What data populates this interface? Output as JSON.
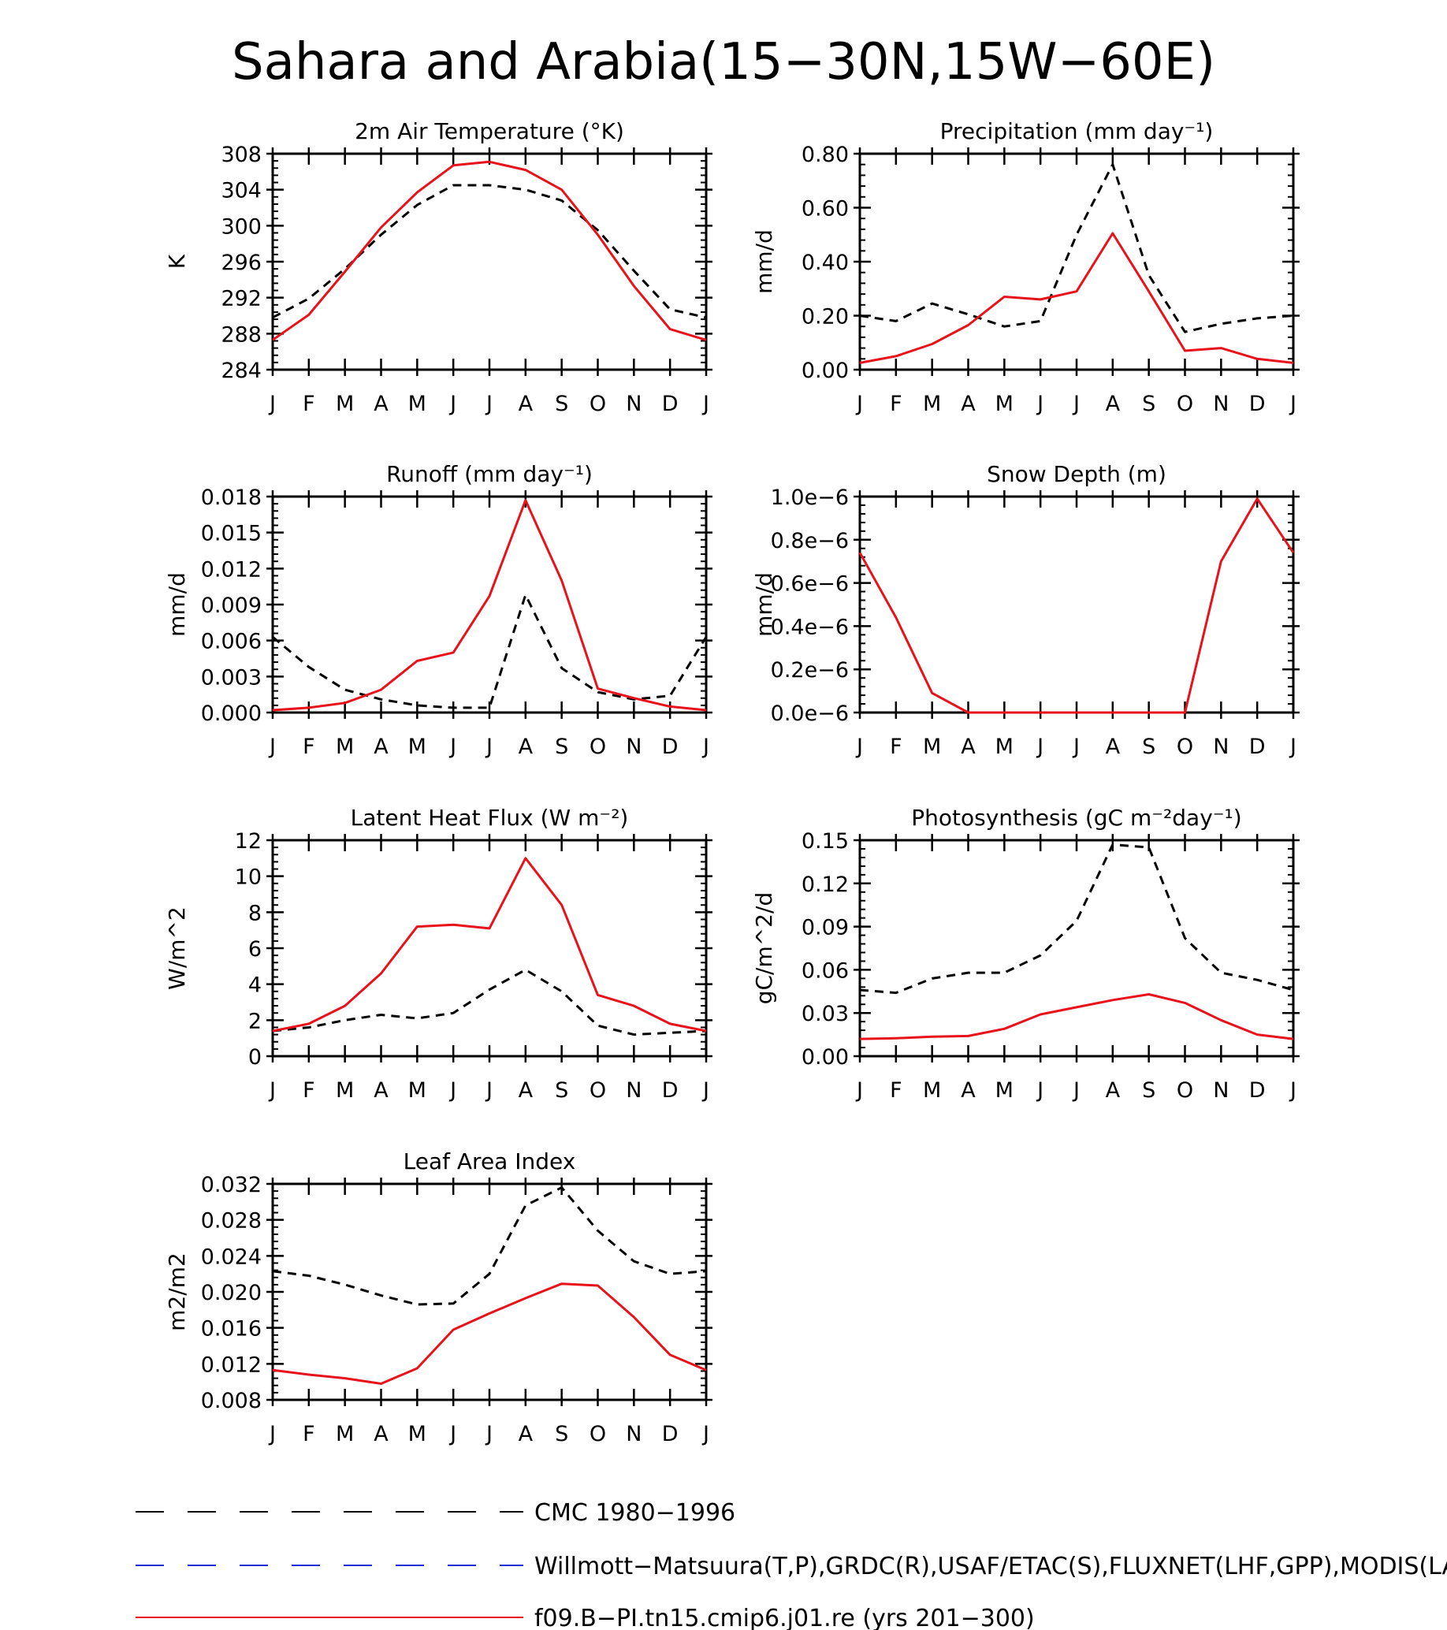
{
  "figure": {
    "title": "Sahara and Arabia(15−30N,15W−60E)"
  },
  "colors": {
    "cmc": "#000000",
    "obs": "#1f2bd6",
    "model": "#e8121b"
  },
  "chart_data": [
    {
      "type": "line",
      "title": "2m Air Temperature (°K)",
      "ylabel": "K",
      "categories": [
        "J",
        "F",
        "M",
        "A",
        "M",
        "J",
        "J",
        "A",
        "S",
        "O",
        "N",
        "D",
        "J"
      ],
      "ylim": [
        284,
        308
      ],
      "yticks": [
        284,
        288,
        292,
        296,
        300,
        304,
        308
      ],
      "ytick_labels": [
        "284",
        "288",
        "292",
        "296",
        "300",
        "304",
        "308"
      ],
      "series": [
        {
          "name": "CMC 1980−1996",
          "style": "dashed",
          "values": [
            289.8,
            291.9,
            295.2,
            299.0,
            302.3,
            304.5,
            304.5,
            304.0,
            302.8,
            299.5,
            295.0,
            290.7,
            289.8
          ]
        },
        {
          "name": "f09.B−PI.tn15.cmip6.j01.re (yrs 201−300)",
          "style": "solid",
          "values": [
            287.3,
            290.1,
            294.9,
            299.8,
            303.7,
            306.7,
            307.1,
            306.2,
            304.0,
            299.0,
            293.3,
            288.5,
            287.3
          ]
        }
      ]
    },
    {
      "type": "line",
      "title": "Precipitation (mm day⁻¹)",
      "ylabel": "mm/d",
      "categories": [
        "J",
        "F",
        "M",
        "A",
        "M",
        "J",
        "J",
        "A",
        "S",
        "O",
        "N",
        "D",
        "J"
      ],
      "ylim": [
        0,
        0.8
      ],
      "yticks": [
        0,
        0.2,
        0.4,
        0.6,
        0.8
      ],
      "ytick_labels": [
        "0.00",
        "0.20",
        "0.40",
        "0.60",
        "0.80"
      ],
      "series": [
        {
          "name": "CMC 1980−1996",
          "style": "dashed",
          "values": [
            0.2,
            0.18,
            0.245,
            0.205,
            0.16,
            0.18,
            0.5,
            0.76,
            0.35,
            0.14,
            0.17,
            0.19,
            0.2
          ]
        },
        {
          "name": "f09.B−PI.tn15.cmip6.j01.re (yrs 201−300)",
          "style": "solid",
          "values": [
            0.025,
            0.05,
            0.095,
            0.165,
            0.27,
            0.26,
            0.29,
            0.505,
            0.29,
            0.07,
            0.08,
            0.04,
            0.025
          ]
        }
      ]
    },
    {
      "type": "line",
      "title": "Runoff (mm day⁻¹)",
      "ylabel": "mm/d",
      "categories": [
        "J",
        "F",
        "M",
        "A",
        "M",
        "J",
        "J",
        "A",
        "S",
        "O",
        "N",
        "D",
        "J"
      ],
      "ylim": [
        0,
        0.018
      ],
      "yticks": [
        0,
        0.003,
        0.006,
        0.009,
        0.012,
        0.015,
        0.018
      ],
      "ytick_labels": [
        "0.000",
        "0.003",
        "0.006",
        "0.009",
        "0.012",
        "0.015",
        "0.018"
      ],
      "series": [
        {
          "name": "CMC 1980−1996",
          "style": "dashed",
          "values": [
            0.0063,
            0.0038,
            0.0019,
            0.0011,
            0.0006,
            0.0004,
            0.0004,
            0.0098,
            0.0037,
            0.0017,
            0.0011,
            0.0014,
            0.0063
          ]
        },
        {
          "name": "f09.B−PI.tn15.cmip6.j01.re (yrs 201−300)",
          "style": "solid",
          "values": [
            0.0002,
            0.0004,
            0.0008,
            0.0019,
            0.0043,
            0.005,
            0.0097,
            0.0177,
            0.011,
            0.002,
            0.0012,
            0.0005,
            0.0002
          ]
        }
      ]
    },
    {
      "type": "line",
      "title": "Snow Depth (m)",
      "ylabel": "mm/d",
      "categories": [
        "J",
        "F",
        "M",
        "A",
        "M",
        "J",
        "J",
        "A",
        "S",
        "O",
        "N",
        "D",
        "J"
      ],
      "ylim": [
        0,
        1e-06
      ],
      "yticks": [
        0,
        2e-07,
        4e-07,
        6e-07,
        8e-07,
        1e-06
      ],
      "ytick_labels": [
        "0.0e−6",
        "0.2e−6",
        "0.4e−6",
        "0.6e−6",
        "0.8e−6",
        "1.0e−6"
      ],
      "series": [
        {
          "name": "CMC 1980−1996",
          "style": "dashed",
          "values": [
            0,
            0,
            0,
            0,
            0,
            0,
            0,
            0,
            0,
            0,
            0,
            0,
            0
          ]
        },
        {
          "name": "f09.B−PI.tn15.cmip6.j01.re (yrs 201−300)",
          "style": "solid",
          "values": [
            7.4e-07,
            4.4e-07,
            9e-08,
            0,
            0,
            0,
            0,
            0,
            0,
            0,
            7e-07,
            9.9e-07,
            7.4e-07
          ]
        }
      ]
    },
    {
      "type": "line",
      "title": "Latent Heat Flux (W m⁻²)",
      "ylabel": "W/m^2",
      "categories": [
        "J",
        "F",
        "M",
        "A",
        "M",
        "J",
        "J",
        "A",
        "S",
        "O",
        "N",
        "D",
        "J"
      ],
      "ylim": [
        0,
        12
      ],
      "yticks": [
        0,
        2,
        4,
        6,
        8,
        10,
        12
      ],
      "ytick_labels": [
        "0",
        "2",
        "4",
        "6",
        "8",
        "10",
        "12"
      ],
      "series": [
        {
          "name": "CMC 1980−1996",
          "style": "dashed",
          "values": [
            1.4,
            1.6,
            2.0,
            2.3,
            2.1,
            2.4,
            3.7,
            4.8,
            3.6,
            1.7,
            1.2,
            1.3,
            1.4
          ]
        },
        {
          "name": "f09.B−PI.tn15.cmip6.j01.re (yrs 201−300)",
          "style": "solid",
          "values": [
            1.4,
            1.8,
            2.8,
            4.6,
            7.2,
            7.3,
            7.1,
            11.0,
            8.4,
            3.4,
            2.8,
            1.8,
            1.4
          ]
        }
      ]
    },
    {
      "type": "line",
      "title": "Photosynthesis (gC m⁻²day⁻¹)",
      "ylabel": "gC/m^2/d",
      "categories": [
        "J",
        "F",
        "M",
        "A",
        "M",
        "J",
        "J",
        "A",
        "S",
        "O",
        "N",
        "D",
        "J"
      ],
      "ylim": [
        0,
        0.15
      ],
      "yticks": [
        0,
        0.03,
        0.06,
        0.09,
        0.12,
        0.15
      ],
      "ytick_labels": [
        "0.00",
        "0.03",
        "0.06",
        "0.09",
        "0.12",
        "0.15"
      ],
      "series": [
        {
          "name": "CMC 1980−1996",
          "style": "dashed",
          "values": [
            0.046,
            0.044,
            0.054,
            0.058,
            0.058,
            0.07,
            0.094,
            0.147,
            0.145,
            0.082,
            0.058,
            0.053,
            0.046
          ]
        },
        {
          "name": "f09.B−PI.tn15.cmip6.j01.re (yrs 201−300)",
          "style": "solid",
          "values": [
            0.012,
            0.0125,
            0.0135,
            0.014,
            0.019,
            0.029,
            0.034,
            0.039,
            0.043,
            0.037,
            0.025,
            0.015,
            0.012
          ]
        }
      ]
    },
    {
      "type": "line",
      "title": "Leaf Area Index",
      "ylabel": "m2/m2",
      "categories": [
        "J",
        "F",
        "M",
        "A",
        "M",
        "J",
        "J",
        "A",
        "S",
        "O",
        "N",
        "D",
        "J"
      ],
      "ylim": [
        0.008,
        0.032
      ],
      "yticks": [
        0.008,
        0.012,
        0.016,
        0.02,
        0.024,
        0.028,
        0.032
      ],
      "ytick_labels": [
        "0.008",
        "0.012",
        "0.016",
        "0.020",
        "0.024",
        "0.028",
        "0.032"
      ],
      "series": [
        {
          "name": "CMC 1980−1996",
          "style": "dashed",
          "values": [
            0.0223,
            0.0218,
            0.0208,
            0.0196,
            0.0186,
            0.0187,
            0.022,
            0.0296,
            0.0316,
            0.0268,
            0.0234,
            0.022,
            0.0223
          ]
        },
        {
          "name": "f09.B−PI.tn15.cmip6.j01.re (yrs 201−300)",
          "style": "solid",
          "values": [
            0.0113,
            0.0108,
            0.0104,
            0.0098,
            0.0115,
            0.0158,
            0.0176,
            0.0193,
            0.0209,
            0.0207,
            0.0172,
            0.013,
            0.0113
          ]
        }
      ]
    }
  ],
  "legend": [
    {
      "label": "CMC 1980−1996",
      "style": "dashed",
      "color": "#000000"
    },
    {
      "label": "Willmott−Matsuura(T,P),GRDC(R),USAF/ETAC(S),FLUXNET(LHF,GPP),MODIS(LAI)",
      "style": "dashed",
      "color": "#1f2bd6"
    },
    {
      "label": "f09.B−PI.tn15.cmip6.j01.re (yrs 201−300)",
      "style": "solid",
      "color": "#e8121b"
    }
  ]
}
